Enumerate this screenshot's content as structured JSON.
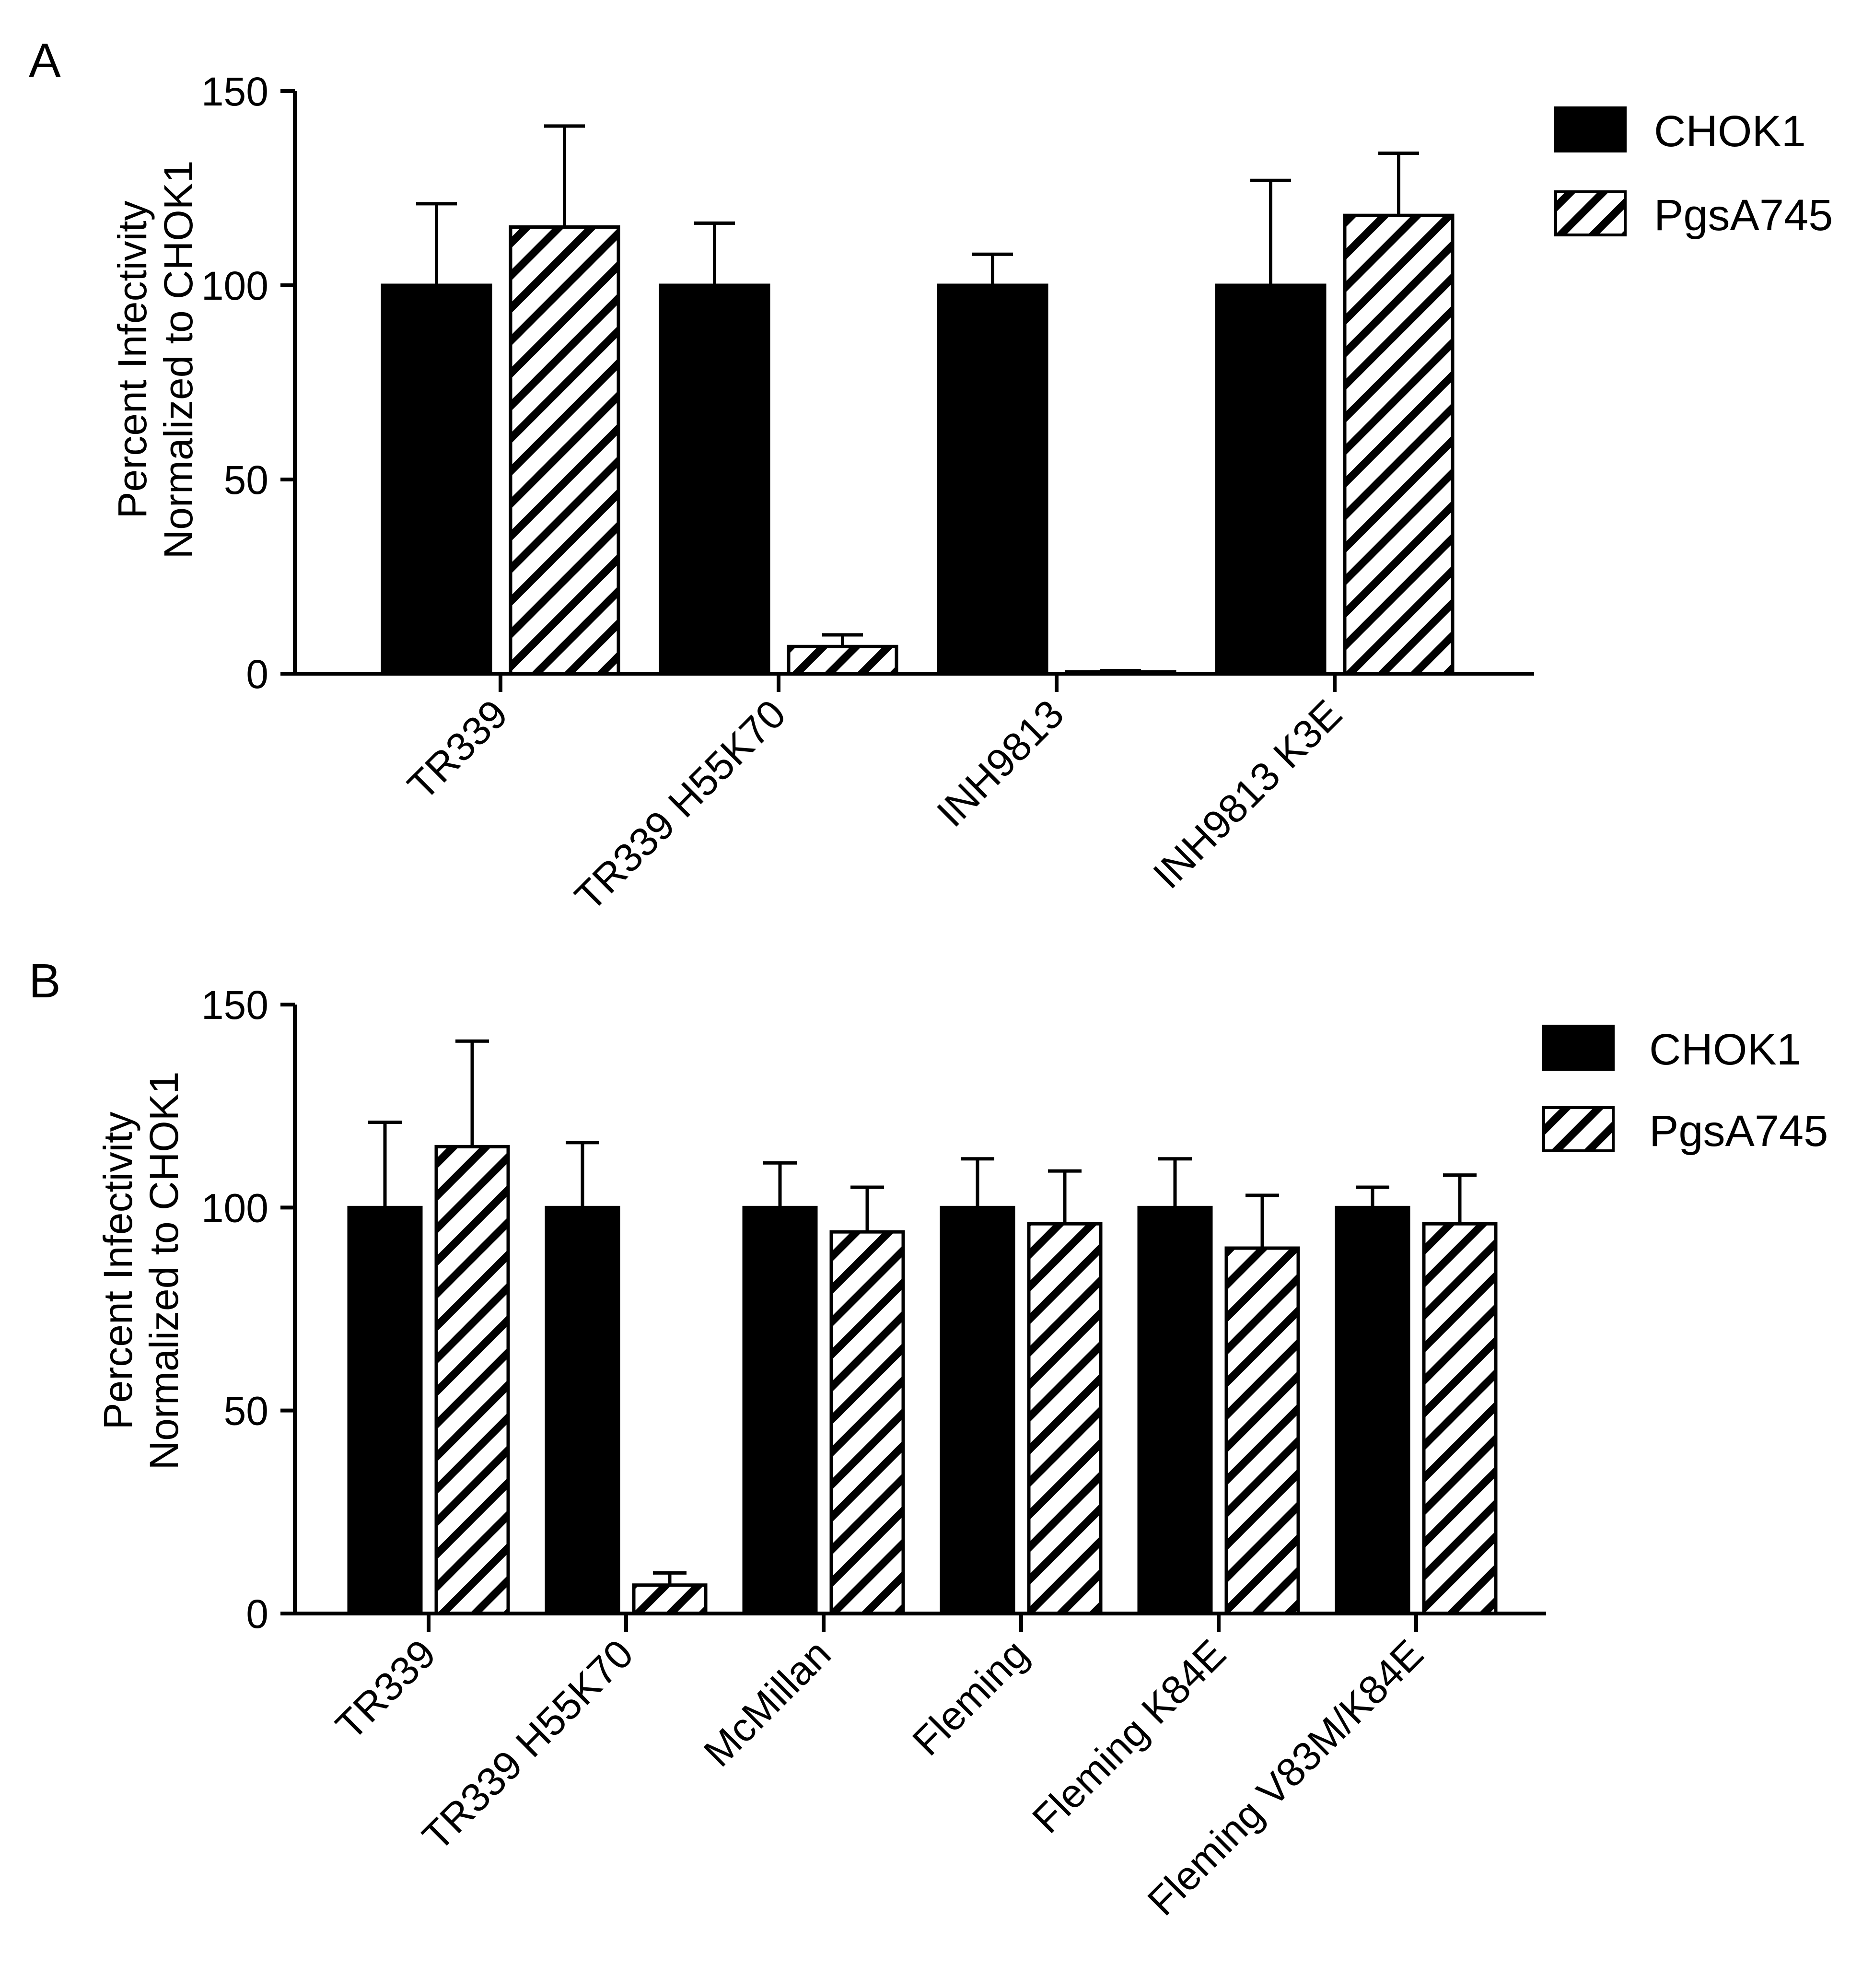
{
  "colors": {
    "chok1_fill": "#000000",
    "pgsa_fill": "#ffffff",
    "hatch": "#000000",
    "axis": "#000000"
  },
  "chart_data": [
    {
      "panel": "A",
      "type": "bar",
      "ylabel_line1": "Percent Infectivity",
      "ylabel_line2": "Normalized to CHOK1",
      "ylim": [
        0,
        150
      ],
      "yticks": [
        0,
        50,
        100,
        150
      ],
      "categories": [
        "TR339",
        "TR339 H55K70",
        "INH9813",
        "INH9813 K3E"
      ],
      "series": [
        {
          "name": "CHOK1",
          "pattern": "solid",
          "values": [
            100,
            100,
            100,
            100
          ],
          "errors": [
            21,
            16,
            8,
            27
          ]
        },
        {
          "name": "PgsA745",
          "pattern": "hatched",
          "values": [
            115,
            7,
            0.5,
            118
          ],
          "errors": [
            26,
            3,
            0.3,
            16
          ]
        }
      ],
      "legend": "top-right"
    },
    {
      "panel": "B",
      "type": "bar",
      "ylabel_line1": "Percent Infectivity",
      "ylabel_line2": "Normalized to CHOK1",
      "ylim": [
        0,
        150
      ],
      "yticks": [
        0,
        50,
        100,
        150
      ],
      "categories": [
        "TR339",
        "TR339 H55K70",
        "McMillan",
        "Fleming",
        "Fleming K84E",
        "Fleming V83M/K84E"
      ],
      "series": [
        {
          "name": "CHOK1",
          "pattern": "solid",
          "values": [
            100,
            100,
            100,
            100,
            100,
            100
          ],
          "errors": [
            21,
            16,
            11,
            12,
            12,
            5
          ]
        },
        {
          "name": "PgsA745",
          "pattern": "hatched",
          "values": [
            115,
            7,
            94,
            96,
            90,
            96
          ],
          "errors": [
            26,
            3,
            11,
            13,
            13,
            12
          ]
        }
      ],
      "legend": "top-right"
    }
  ]
}
